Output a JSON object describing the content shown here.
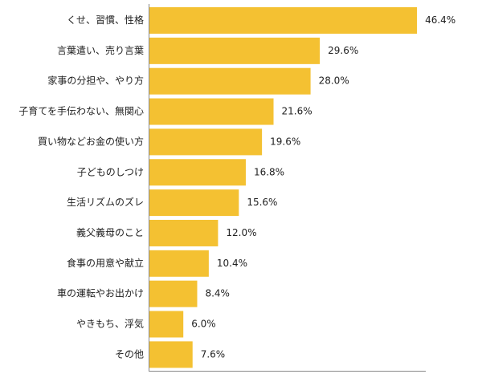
{
  "chart_data": {
    "type": "bar",
    "orientation": "horizontal",
    "categories": [
      "くせ、習慣、性格",
      "言葉遣い、売り言葉",
      "家事の分担や、やり方",
      "子育てを手伝わない、無関心",
      "買い物などお金の使い方",
      "子どものしつけ",
      "生活リズムのズレ",
      "義父義母のこと",
      "食事の用意や献立",
      "車の運転やお出かけ",
      "やきもち、浮気",
      "その他"
    ],
    "values": [
      46.4,
      29.6,
      28.0,
      21.6,
      19.6,
      16.8,
      15.6,
      12.0,
      10.4,
      8.4,
      6.0,
      7.6
    ],
    "value_labels": [
      "46.4%",
      "29.6%",
      "28.0%",
      "21.6%",
      "19.6%",
      "16.8%",
      "15.6%",
      "12.0%",
      "10.4%",
      "8.4%",
      "6.0%",
      "7.6%"
    ],
    "xlim": [
      0,
      50
    ],
    "grid": false,
    "legend": "none",
    "bar_color": "#F4C132",
    "axis_color": "#888888"
  }
}
